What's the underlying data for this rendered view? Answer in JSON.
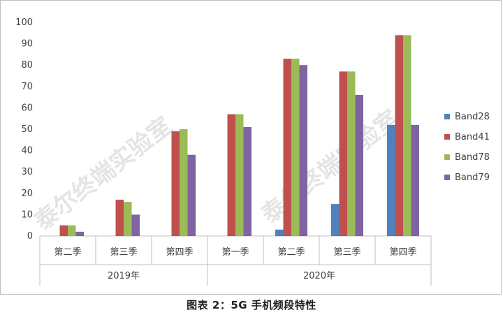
{
  "chart_data": {
    "type": "bar",
    "groups": [
      {
        "label": "2019年",
        "categories": [
          "第二季",
          "第三季",
          "第四季"
        ]
      },
      {
        "label": "2020年",
        "categories": [
          "第一季",
          "第二季",
          "第三季",
          "第四季"
        ]
      }
    ],
    "categories": [
      "第二季",
      "第三季",
      "第四季",
      "第一季",
      "第二季",
      "第三季",
      "第四季"
    ],
    "series": [
      {
        "name": "Band28",
        "color": "#4f81bd",
        "values": [
          0,
          0,
          0,
          0,
          3,
          15,
          52
        ]
      },
      {
        "name": "Band41",
        "color": "#c0504d",
        "values": [
          5,
          17,
          49,
          57,
          83,
          77,
          94
        ]
      },
      {
        "name": "Band78",
        "color": "#9bbb59",
        "values": [
          5,
          16,
          50,
          57,
          83,
          77,
          94
        ]
      },
      {
        "name": "Band79",
        "color": "#8064a2",
        "values": [
          2,
          10,
          38,
          51,
          80,
          66,
          52
        ]
      }
    ],
    "ylim": [
      0,
      100
    ],
    "yticks": [
      0,
      10,
      20,
      30,
      40,
      50,
      60,
      70,
      80,
      90,
      100
    ],
    "grid": false,
    "legend": "right"
  },
  "watermark": "泰尔终端实验室",
  "caption": "图表 2：5G 手机频段特性"
}
